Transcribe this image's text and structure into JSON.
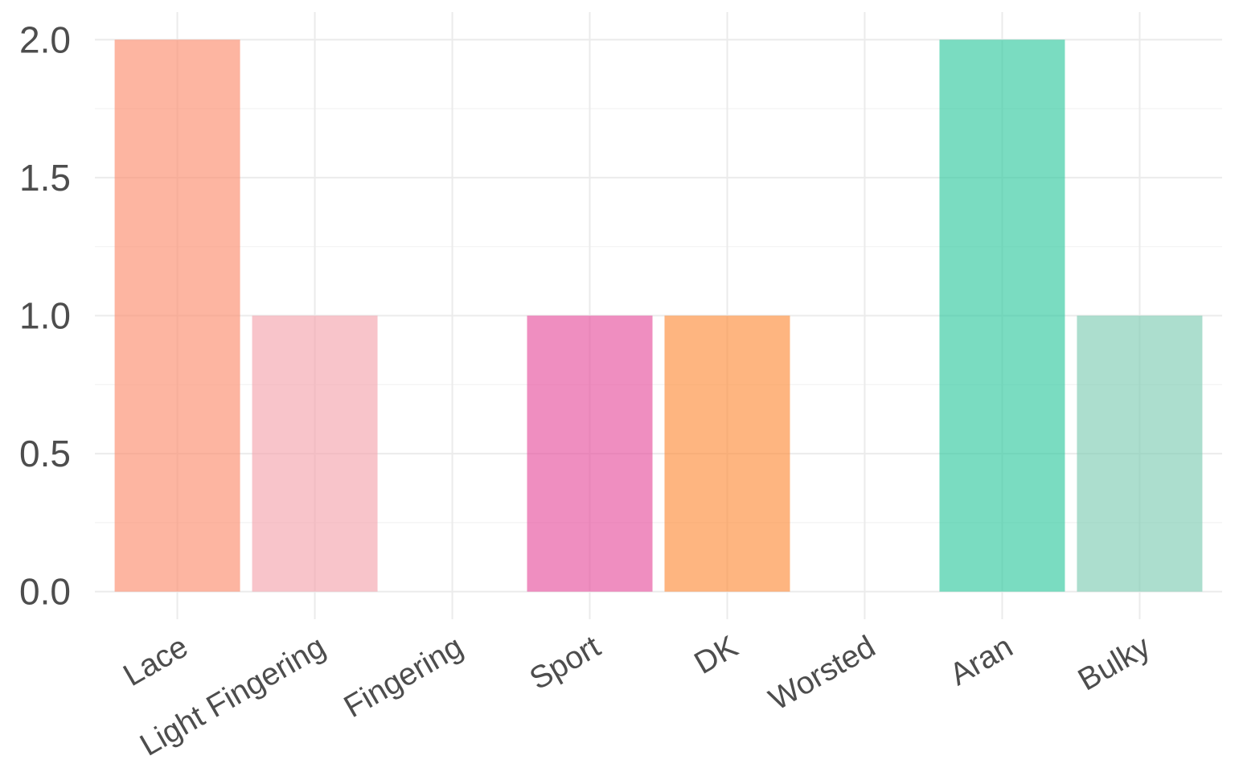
{
  "chart_data": {
    "type": "bar",
    "title": "",
    "xlabel": "",
    "ylabel": "",
    "categories": [
      "Lace",
      "Light Fingering",
      "Fingering",
      "Sport",
      "DK",
      "Worsted",
      "Aran",
      "Bulky"
    ],
    "values": [
      2,
      1,
      0,
      1,
      1,
      0,
      2,
      1
    ],
    "colors": [
      "#fc8d6f",
      "#f4a5ae",
      "#8da0cb",
      "#e7529e",
      "#fd8d3c",
      "#8da0cb",
      "#33c9a0",
      "#7fcdb4"
    ],
    "bar_opacity": 0.65,
    "ylim": [
      -0.1,
      2.1
    ],
    "yticks": [
      0.0,
      0.5,
      1.0,
      1.5,
      2.0
    ],
    "ytick_labels": [
      "0.0",
      "0.5",
      "1.0",
      "1.5",
      "2.0"
    ],
    "grid": true,
    "legend": "none",
    "x_label_rotation": -30
  }
}
